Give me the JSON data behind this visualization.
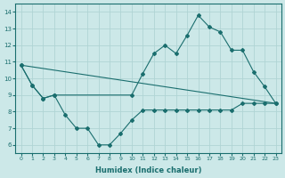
{
  "xlabel": "Humidex (Indice chaleur)",
  "bg_color": "#cce8e8",
  "line_color": "#1a6e6e",
  "grid_color": "#b0d4d4",
  "series1_x": [
    0,
    1,
    2,
    3,
    4,
    5,
    6,
    7,
    8,
    9,
    10,
    11,
    12,
    13,
    14,
    15,
    16,
    17,
    18,
    19,
    20,
    21,
    22,
    23
  ],
  "series1_y": [
    10.8,
    9.6,
    8.8,
    9.0,
    7.8,
    7.0,
    7.0,
    6.0,
    6.0,
    6.7,
    7.5,
    8.1,
    8.1,
    8.1,
    8.1,
    8.1,
    8.1,
    8.1,
    8.1,
    8.1,
    8.5,
    8.5,
    8.5,
    8.5
  ],
  "series2_x": [
    0,
    23
  ],
  "series2_y": [
    10.8,
    8.5
  ],
  "series3_x": [
    0,
    1,
    2,
    3,
    10,
    11,
    12,
    13,
    14,
    15,
    16,
    17,
    18,
    19,
    20,
    21,
    22,
    23
  ],
  "series3_y": [
    10.8,
    9.6,
    8.8,
    9.0,
    9.0,
    10.3,
    11.5,
    12.0,
    11.5,
    12.6,
    13.8,
    13.1,
    12.8,
    11.7,
    11.7,
    10.4,
    9.5,
    8.5
  ],
  "xlim": [
    -0.5,
    23.5
  ],
  "ylim": [
    5.5,
    14.5
  ],
  "yticks": [
    6,
    7,
    8,
    9,
    10,
    11,
    12,
    13,
    14
  ],
  "xticks": [
    0,
    1,
    2,
    3,
    4,
    5,
    6,
    7,
    8,
    9,
    10,
    11,
    12,
    13,
    14,
    15,
    16,
    17,
    18,
    19,
    20,
    21,
    22,
    23
  ]
}
